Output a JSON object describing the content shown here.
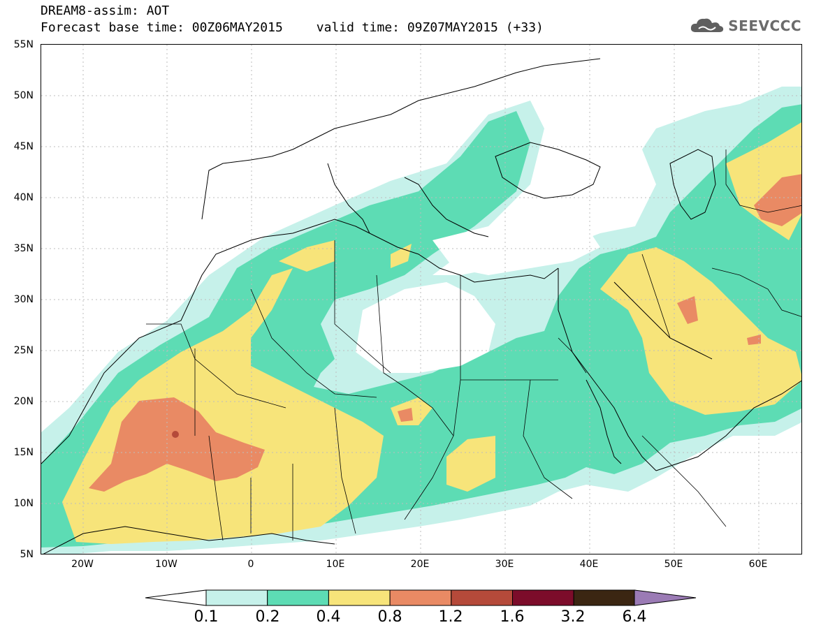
{
  "header": {
    "title_line1": "DREAM8-assim: AOT",
    "base_time_label": "Forecast base time: 00Z06MAY2015",
    "valid_time_label": "valid time: 09Z07MAY2015 (+33)",
    "logo_text": "SEEVCCC",
    "logo_icon": "cloud-icon"
  },
  "map": {
    "lat_labels": [
      "55N",
      "50N",
      "45N",
      "40N",
      "35N",
      "30N",
      "25N",
      "20N",
      "15N",
      "10N",
      "5N"
    ],
    "lon_labels": [
      "20W",
      "10W",
      "0",
      "10E",
      "20E",
      "30E",
      "40E",
      "50E",
      "60E"
    ],
    "grid": "dashed-light-gray",
    "colors": {
      "coast_lines": "#000000",
      "dust_low": "#c6f1ea",
      "dust_mid": "#5ddcb4",
      "dust_high": "#f7e47a",
      "dust_vhigh": "#e98a64"
    }
  },
  "colorbar": {
    "labels": [
      "0.1",
      "0.2",
      "0.4",
      "0.8",
      "1.2",
      "1.6",
      "3.2",
      "6.4"
    ],
    "colors": [
      "#c6f1ea",
      "#5ddcb4",
      "#f7e47a",
      "#e98a64",
      "#b54a3a",
      "#7c0c2a",
      "#3b2612",
      "#9b7bb5"
    ]
  }
}
